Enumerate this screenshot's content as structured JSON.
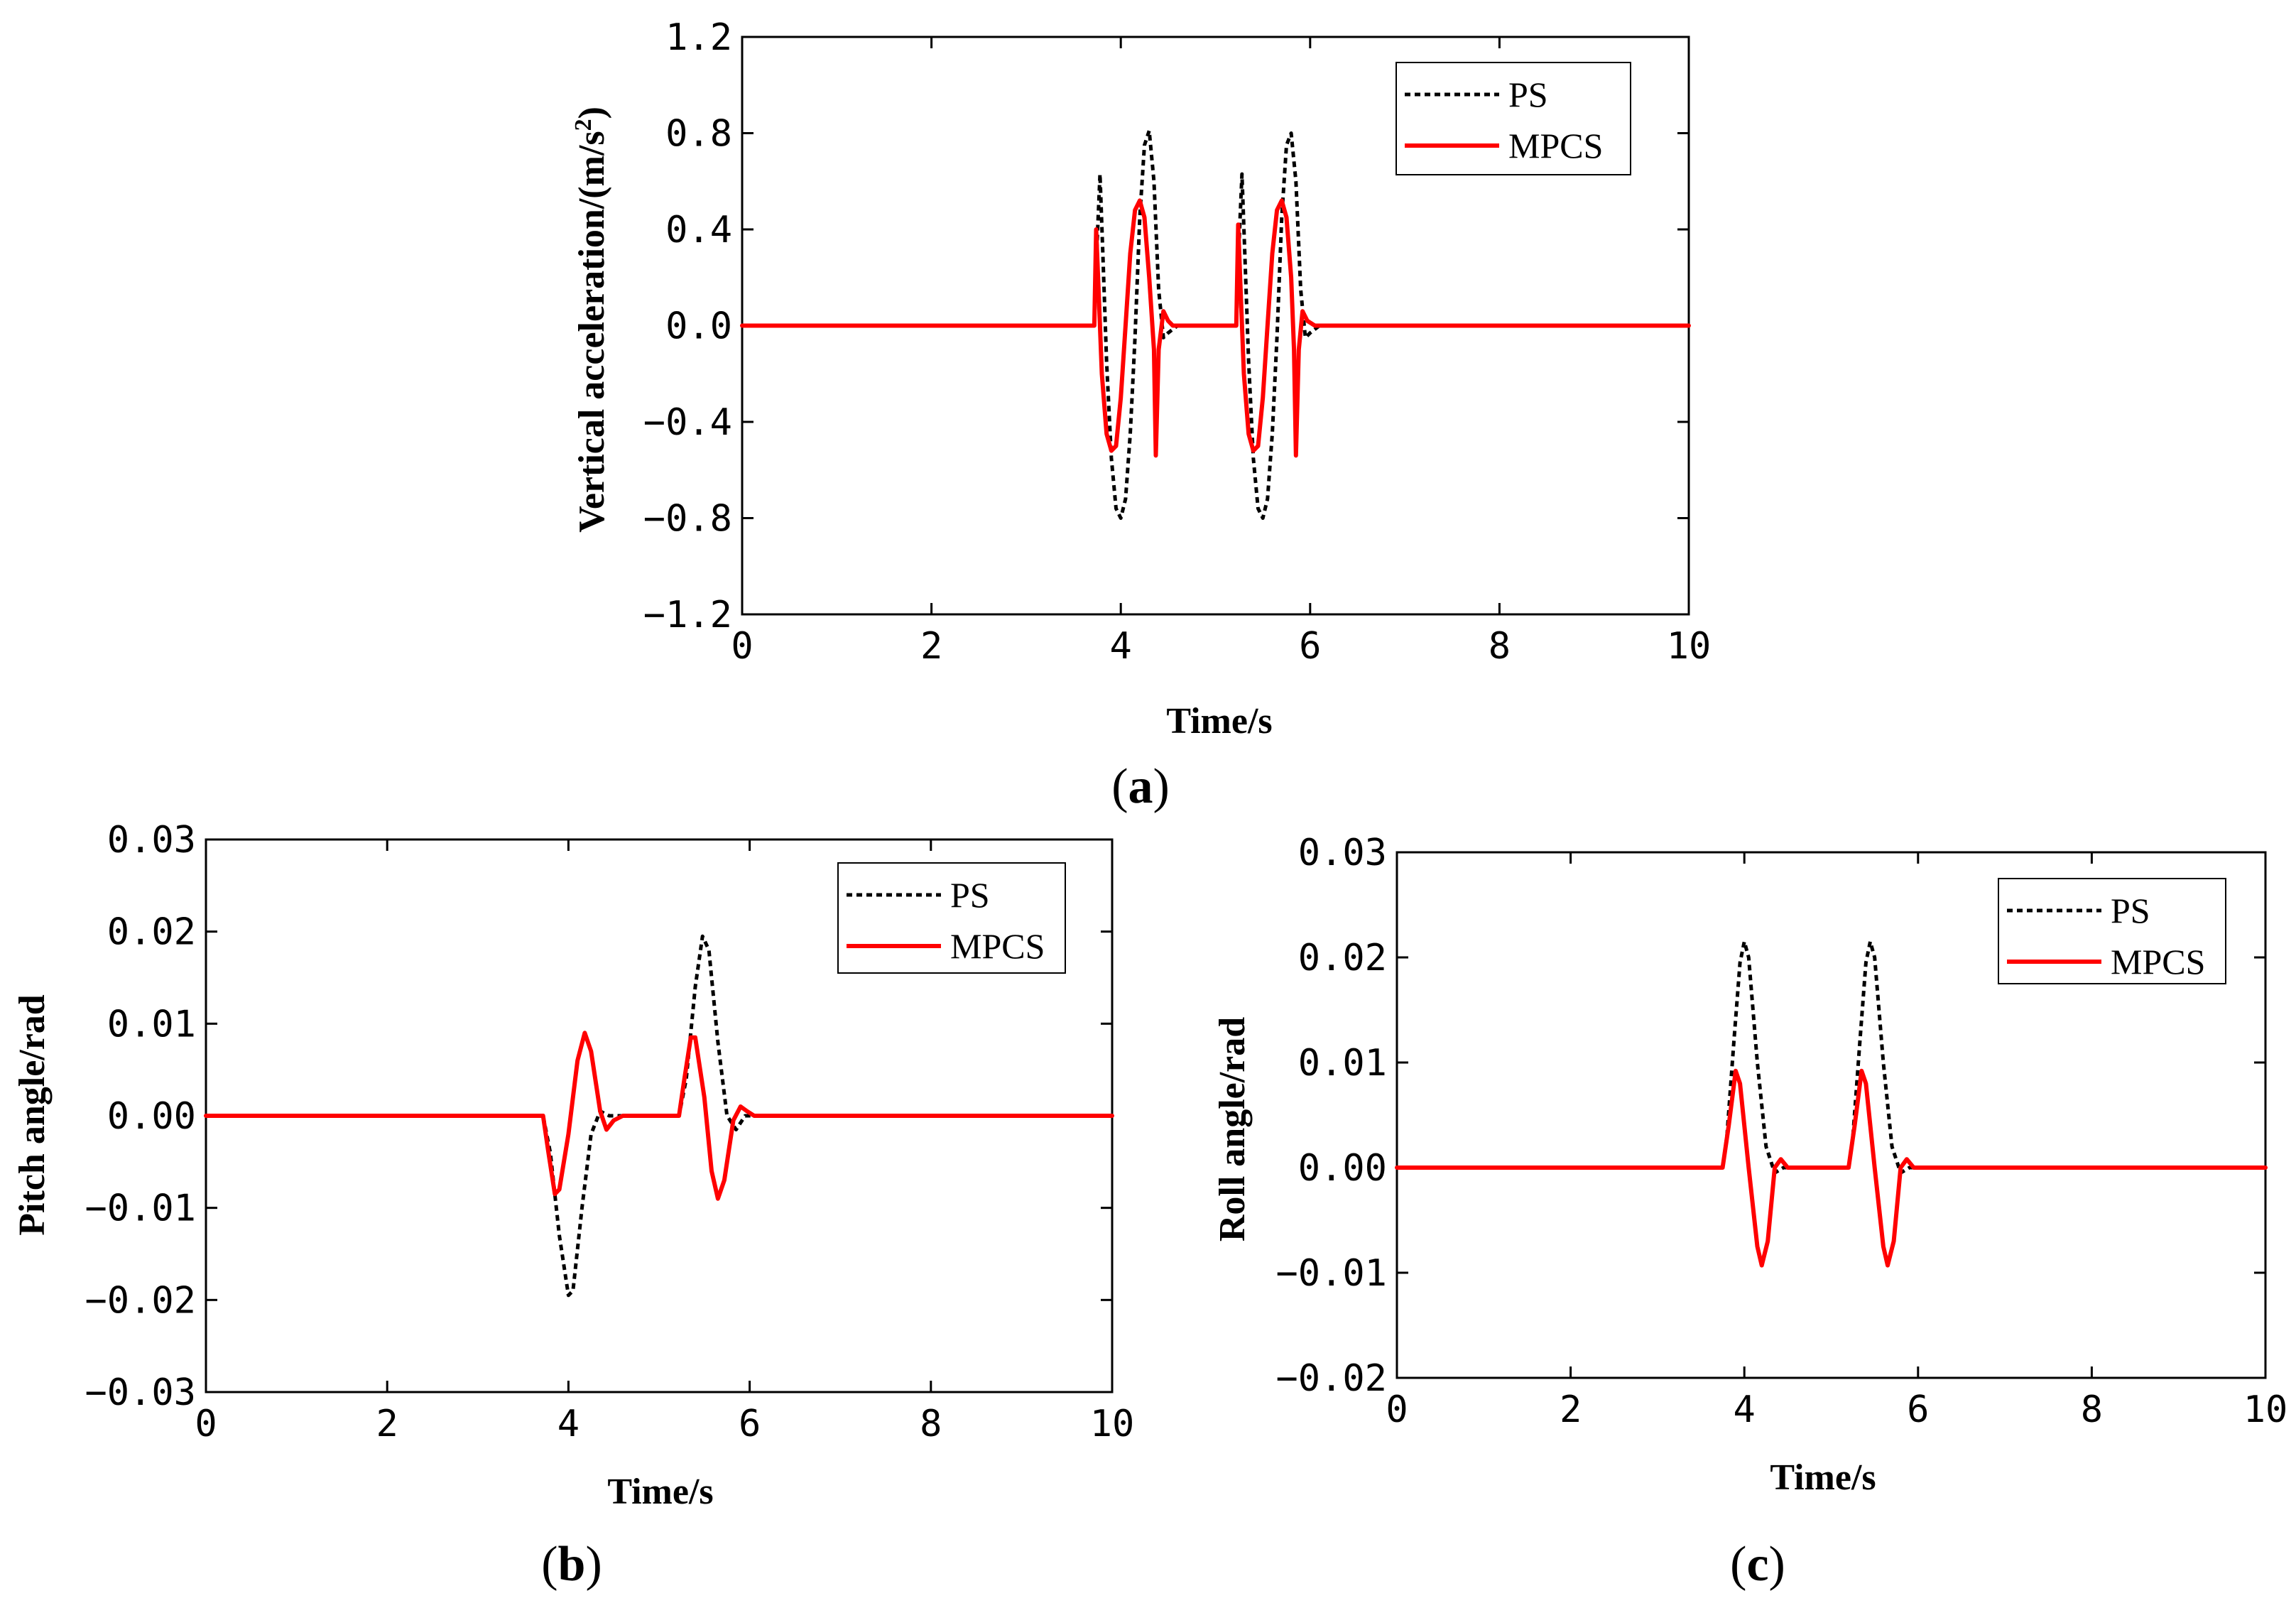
{
  "figure": {
    "colors": {
      "ps": "#000000",
      "mpcs": "#ff0000",
      "axes": "#000000",
      "background": "#ffffff"
    }
  },
  "chart_data": [
    {
      "id": "a",
      "type": "line",
      "caption": "a",
      "xlabel": "Time/s",
      "ylabel_prefix": "Vertical acceleration/(m/s",
      "ylabel_sup": "2",
      "ylabel_suffix": ")",
      "xlim": [
        0,
        10
      ],
      "ylim": [
        -1.2,
        1.2
      ],
      "xticks": [
        0,
        2,
        4,
        6,
        8,
        10
      ],
      "xtick_labels": [
        "0",
        "2",
        "4",
        "6",
        "8",
        "10"
      ],
      "yticks": [
        1.2,
        0.8,
        0.4,
        0.0,
        -0.4,
        -0.8,
        -1.2
      ],
      "ytick_labels": [
        "1.2",
        "0.8",
        "0.4",
        "0.0",
        "−0.4",
        "−0.8",
        "−1.2"
      ],
      "legend_position": "top-right",
      "series": [
        {
          "name": "PS",
          "style": "dotted",
          "color": "#000000",
          "points": [
            [
              0,
              0
            ],
            [
              3.72,
              0
            ],
            [
              3.75,
              0.35
            ],
            [
              3.78,
              0.63
            ],
            [
              3.81,
              0.3
            ],
            [
              3.85,
              -0.15
            ],
            [
              3.9,
              -0.55
            ],
            [
              3.95,
              -0.76
            ],
            [
              4.0,
              -0.8
            ],
            [
              4.05,
              -0.72
            ],
            [
              4.1,
              -0.45
            ],
            [
              4.15,
              -0.05
            ],
            [
              4.2,
              0.45
            ],
            [
              4.25,
              0.75
            ],
            [
              4.3,
              0.81
            ],
            [
              4.35,
              0.6
            ],
            [
              4.4,
              0.15
            ],
            [
              4.45,
              -0.05
            ],
            [
              4.5,
              -0.03
            ],
            [
              4.6,
              0
            ],
            [
              5.22,
              0
            ],
            [
              5.25,
              0.35
            ],
            [
              5.28,
              0.63
            ],
            [
              5.31,
              0.3
            ],
            [
              5.35,
              -0.15
            ],
            [
              5.4,
              -0.55
            ],
            [
              5.45,
              -0.76
            ],
            [
              5.5,
              -0.8
            ],
            [
              5.55,
              -0.72
            ],
            [
              5.6,
              -0.45
            ],
            [
              5.65,
              -0.05
            ],
            [
              5.7,
              0.45
            ],
            [
              5.75,
              0.75
            ],
            [
              5.8,
              0.8
            ],
            [
              5.85,
              0.6
            ],
            [
              5.9,
              0.15
            ],
            [
              5.95,
              -0.05
            ],
            [
              6.0,
              -0.03
            ],
            [
              6.1,
              0
            ],
            [
              10,
              0
            ]
          ]
        },
        {
          "name": "MPCS",
          "style": "solid",
          "color": "#ff0000",
          "points": [
            [
              0,
              0
            ],
            [
              3.72,
              0
            ],
            [
              3.74,
              0.4
            ],
            [
              3.76,
              0.2
            ],
            [
              3.8,
              -0.2
            ],
            [
              3.85,
              -0.45
            ],
            [
              3.9,
              -0.52
            ],
            [
              3.95,
              -0.5
            ],
            [
              4.0,
              -0.3
            ],
            [
              4.05,
              0.0
            ],
            [
              4.1,
              0.3
            ],
            [
              4.15,
              0.48
            ],
            [
              4.2,
              0.52
            ],
            [
              4.25,
              0.45
            ],
            [
              4.3,
              0.2
            ],
            [
              4.35,
              -0.1
            ],
            [
              4.37,
              -0.54
            ],
            [
              4.4,
              -0.1
            ],
            [
              4.45,
              0.06
            ],
            [
              4.5,
              0.02
            ],
            [
              4.55,
              0
            ],
            [
              5.22,
              0
            ],
            [
              5.24,
              0.42
            ],
            [
              5.26,
              0.2
            ],
            [
              5.3,
              -0.2
            ],
            [
              5.35,
              -0.45
            ],
            [
              5.4,
              -0.52
            ],
            [
              5.45,
              -0.5
            ],
            [
              5.5,
              -0.3
            ],
            [
              5.55,
              0.0
            ],
            [
              5.6,
              0.3
            ],
            [
              5.65,
              0.48
            ],
            [
              5.7,
              0.52
            ],
            [
              5.75,
              0.45
            ],
            [
              5.8,
              0.2
            ],
            [
              5.83,
              -0.1
            ],
            [
              5.85,
              -0.54
            ],
            [
              5.88,
              -0.1
            ],
            [
              5.92,
              0.06
            ],
            [
              5.97,
              0.02
            ],
            [
              6.05,
              0
            ],
            [
              10,
              0
            ]
          ]
        }
      ]
    },
    {
      "id": "b",
      "type": "line",
      "caption": "b",
      "xlabel": "Time/s",
      "ylabel": "Pitch angle/rad",
      "xlim": [
        0,
        10
      ],
      "ylim": [
        -0.03,
        0.03
      ],
      "xticks": [
        0,
        2,
        4,
        6,
        8,
        10
      ],
      "xtick_labels": [
        "0",
        "2",
        "4",
        "6",
        "8",
        "10"
      ],
      "yticks": [
        0.03,
        0.02,
        0.01,
        0.0,
        -0.01,
        -0.02,
        -0.03
      ],
      "ytick_labels": [
        "0.03",
        "0.02",
        "0.01",
        "0.00",
        "−0.01",
        "−0.02",
        "−0.03"
      ],
      "legend_position": "top-right",
      "series": [
        {
          "name": "PS",
          "style": "dotted",
          "color": "#000000",
          "points": [
            [
              0,
              0
            ],
            [
              3.72,
              0
            ],
            [
              3.8,
              -0.004
            ],
            [
              3.9,
              -0.013
            ],
            [
              4.0,
              -0.0195
            ],
            [
              4.05,
              -0.019
            ],
            [
              4.15,
              -0.01
            ],
            [
              4.25,
              -0.002
            ],
            [
              4.35,
              0.0005
            ],
            [
              4.45,
              0
            ],
            [
              5.22,
              0
            ],
            [
              5.3,
              0.004
            ],
            [
              5.4,
              0.014
            ],
            [
              5.48,
              0.0195
            ],
            [
              5.55,
              0.018
            ],
            [
              5.65,
              0.008
            ],
            [
              5.75,
              0.0
            ],
            [
              5.85,
              -0.0015
            ],
            [
              5.95,
              0
            ],
            [
              10,
              0
            ]
          ]
        },
        {
          "name": "MPCS",
          "style": "solid",
          "color": "#ff0000",
          "points": [
            [
              0,
              0
            ],
            [
              3.72,
              0
            ],
            [
              3.78,
              -0.004
            ],
            [
              3.85,
              -0.0085
            ],
            [
              3.9,
              -0.008
            ],
            [
              4.0,
              -0.002
            ],
            [
              4.1,
              0.006
            ],
            [
              4.18,
              0.009
            ],
            [
              4.25,
              0.007
            ],
            [
              4.35,
              0.0005
            ],
            [
              4.42,
              -0.0015
            ],
            [
              4.5,
              -0.0005
            ],
            [
              4.6,
              0
            ],
            [
              5.22,
              0
            ],
            [
              5.28,
              0.004
            ],
            [
              5.35,
              0.0085
            ],
            [
              5.4,
              0.0085
            ],
            [
              5.5,
              0.002
            ],
            [
              5.58,
              -0.006
            ],
            [
              5.65,
              -0.009
            ],
            [
              5.72,
              -0.007
            ],
            [
              5.82,
              -0.0005
            ],
            [
              5.9,
              0.001
            ],
            [
              5.97,
              0.0005
            ],
            [
              6.05,
              0
            ],
            [
              10,
              0
            ]
          ]
        }
      ]
    },
    {
      "id": "c",
      "type": "line",
      "caption": "c",
      "xlabel": "Time/s",
      "ylabel": "Roll angle/rad",
      "xlim": [
        0,
        10
      ],
      "ylim": [
        -0.02,
        0.03
      ],
      "xticks": [
        0,
        2,
        4,
        6,
        8,
        10
      ],
      "xtick_labels": [
        "0",
        "2",
        "4",
        "6",
        "8",
        "10"
      ],
      "yticks": [
        0.03,
        0.02,
        0.01,
        0.0,
        -0.01,
        -0.02
      ],
      "ytick_labels": [
        "0.03",
        "0.02",
        "0.01",
        "0.00",
        "−0.01",
        "−0.02"
      ],
      "legend_position": "top-right",
      "series": [
        {
          "name": "PS",
          "style": "dotted",
          "color": "#000000",
          "points": [
            [
              0,
              0
            ],
            [
              3.75,
              0
            ],
            [
              3.8,
              0.003
            ],
            [
              3.88,
              0.012
            ],
            [
              3.95,
              0.0195
            ],
            [
              4.0,
              0.0215
            ],
            [
              4.05,
              0.02
            ],
            [
              4.15,
              0.01
            ],
            [
              4.25,
              0.002
            ],
            [
              4.35,
              -0.0005
            ],
            [
              4.45,
              0
            ],
            [
              5.2,
              0
            ],
            [
              5.25,
              0.003
            ],
            [
              5.33,
              0.012
            ],
            [
              5.4,
              0.0195
            ],
            [
              5.45,
              0.0215
            ],
            [
              5.5,
              0.02
            ],
            [
              5.6,
              0.01
            ],
            [
              5.7,
              0.002
            ],
            [
              5.8,
              -0.0005
            ],
            [
              5.9,
              0
            ],
            [
              10,
              0
            ]
          ]
        },
        {
          "name": "MPCS",
          "style": "solid",
          "color": "#ff0000",
          "points": [
            [
              0,
              0
            ],
            [
              3.75,
              0
            ],
            [
              3.82,
              0.004
            ],
            [
              3.9,
              0.0092
            ],
            [
              3.95,
              0.008
            ],
            [
              4.05,
              0.0
            ],
            [
              4.15,
              -0.0075
            ],
            [
              4.2,
              -0.0093
            ],
            [
              4.27,
              -0.007
            ],
            [
              4.35,
              0.0
            ],
            [
              4.42,
              0.0008
            ],
            [
              4.5,
              0
            ],
            [
              5.2,
              0
            ],
            [
              5.27,
              0.004
            ],
            [
              5.35,
              0.0092
            ],
            [
              5.4,
              0.008
            ],
            [
              5.5,
              0.0
            ],
            [
              5.6,
              -0.0075
            ],
            [
              5.65,
              -0.0093
            ],
            [
              5.72,
              -0.007
            ],
            [
              5.8,
              0.0
            ],
            [
              5.87,
              0.0008
            ],
            [
              5.95,
              0
            ],
            [
              10,
              0
            ]
          ]
        }
      ]
    }
  ]
}
